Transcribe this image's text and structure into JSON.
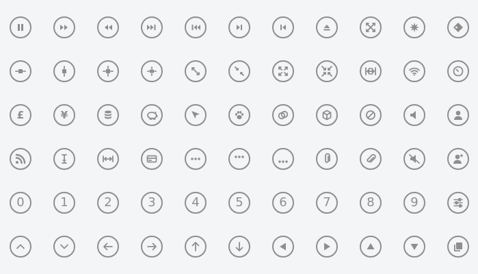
{
  "icon_color": "#8e8e8e",
  "background_color": "#f4f5f7",
  "rows": [
    [
      "pause-icon",
      "fast-forward-icon",
      "rewind-icon",
      "skip-next-icon",
      "skip-previous-icon",
      "next-track-icon",
      "previous-track-icon",
      "eject-icon",
      "close-x-icon",
      "burst-icon",
      "tag-icon"
    ],
    [
      "horizontal-distribute-icon",
      "vertical-distribute-icon",
      "align-center-icon",
      "center-both-icon",
      "expand-diagonal-icon",
      "shrink-diagonal-icon",
      "fullscreen-icon",
      "exit-fullscreen-icon",
      "fit-width-icon",
      "wifi-icon",
      "compass-icon"
    ],
    [
      "pound-icon",
      "yen-icon",
      "database-icon",
      "piggy-bank-icon",
      "cursor-icon",
      "paw-icon",
      "rings-icon",
      "cube-icon",
      "prohibited-icon",
      "speaker-icon",
      "user-icon"
    ],
    [
      "rss-icon",
      "text-cursor-icon",
      "horizontal-resize-icon",
      "credit-card-icon",
      "ellipsis-icon",
      "ellipsis-top-icon",
      "ellipsis-bottom-icon",
      "paperclip-icon",
      "attachment-icon",
      "mute-icon",
      "user-add-icon"
    ],
    [
      "digit-0-icon",
      "digit-1-icon",
      "digit-2-icon",
      "digit-3-icon",
      "digit-4-icon",
      "digit-5-icon",
      "digit-6-icon",
      "digit-7-icon",
      "digit-8-icon",
      "digit-9-icon",
      "settings-sliders-icon"
    ],
    [
      "chevron-up-icon",
      "chevron-down-icon",
      "arrow-left-icon",
      "arrow-right-icon",
      "arrow-up-icon",
      "arrow-down-icon",
      "triangle-left-icon",
      "triangle-right-icon",
      "triangle-up-icon",
      "triangle-down-icon",
      "copy-icon"
    ]
  ],
  "labels": {
    "pound": "£",
    "yen": "¥",
    "digits": [
      "0",
      "1",
      "2",
      "3",
      "4",
      "5",
      "6",
      "7",
      "8",
      "9"
    ]
  }
}
